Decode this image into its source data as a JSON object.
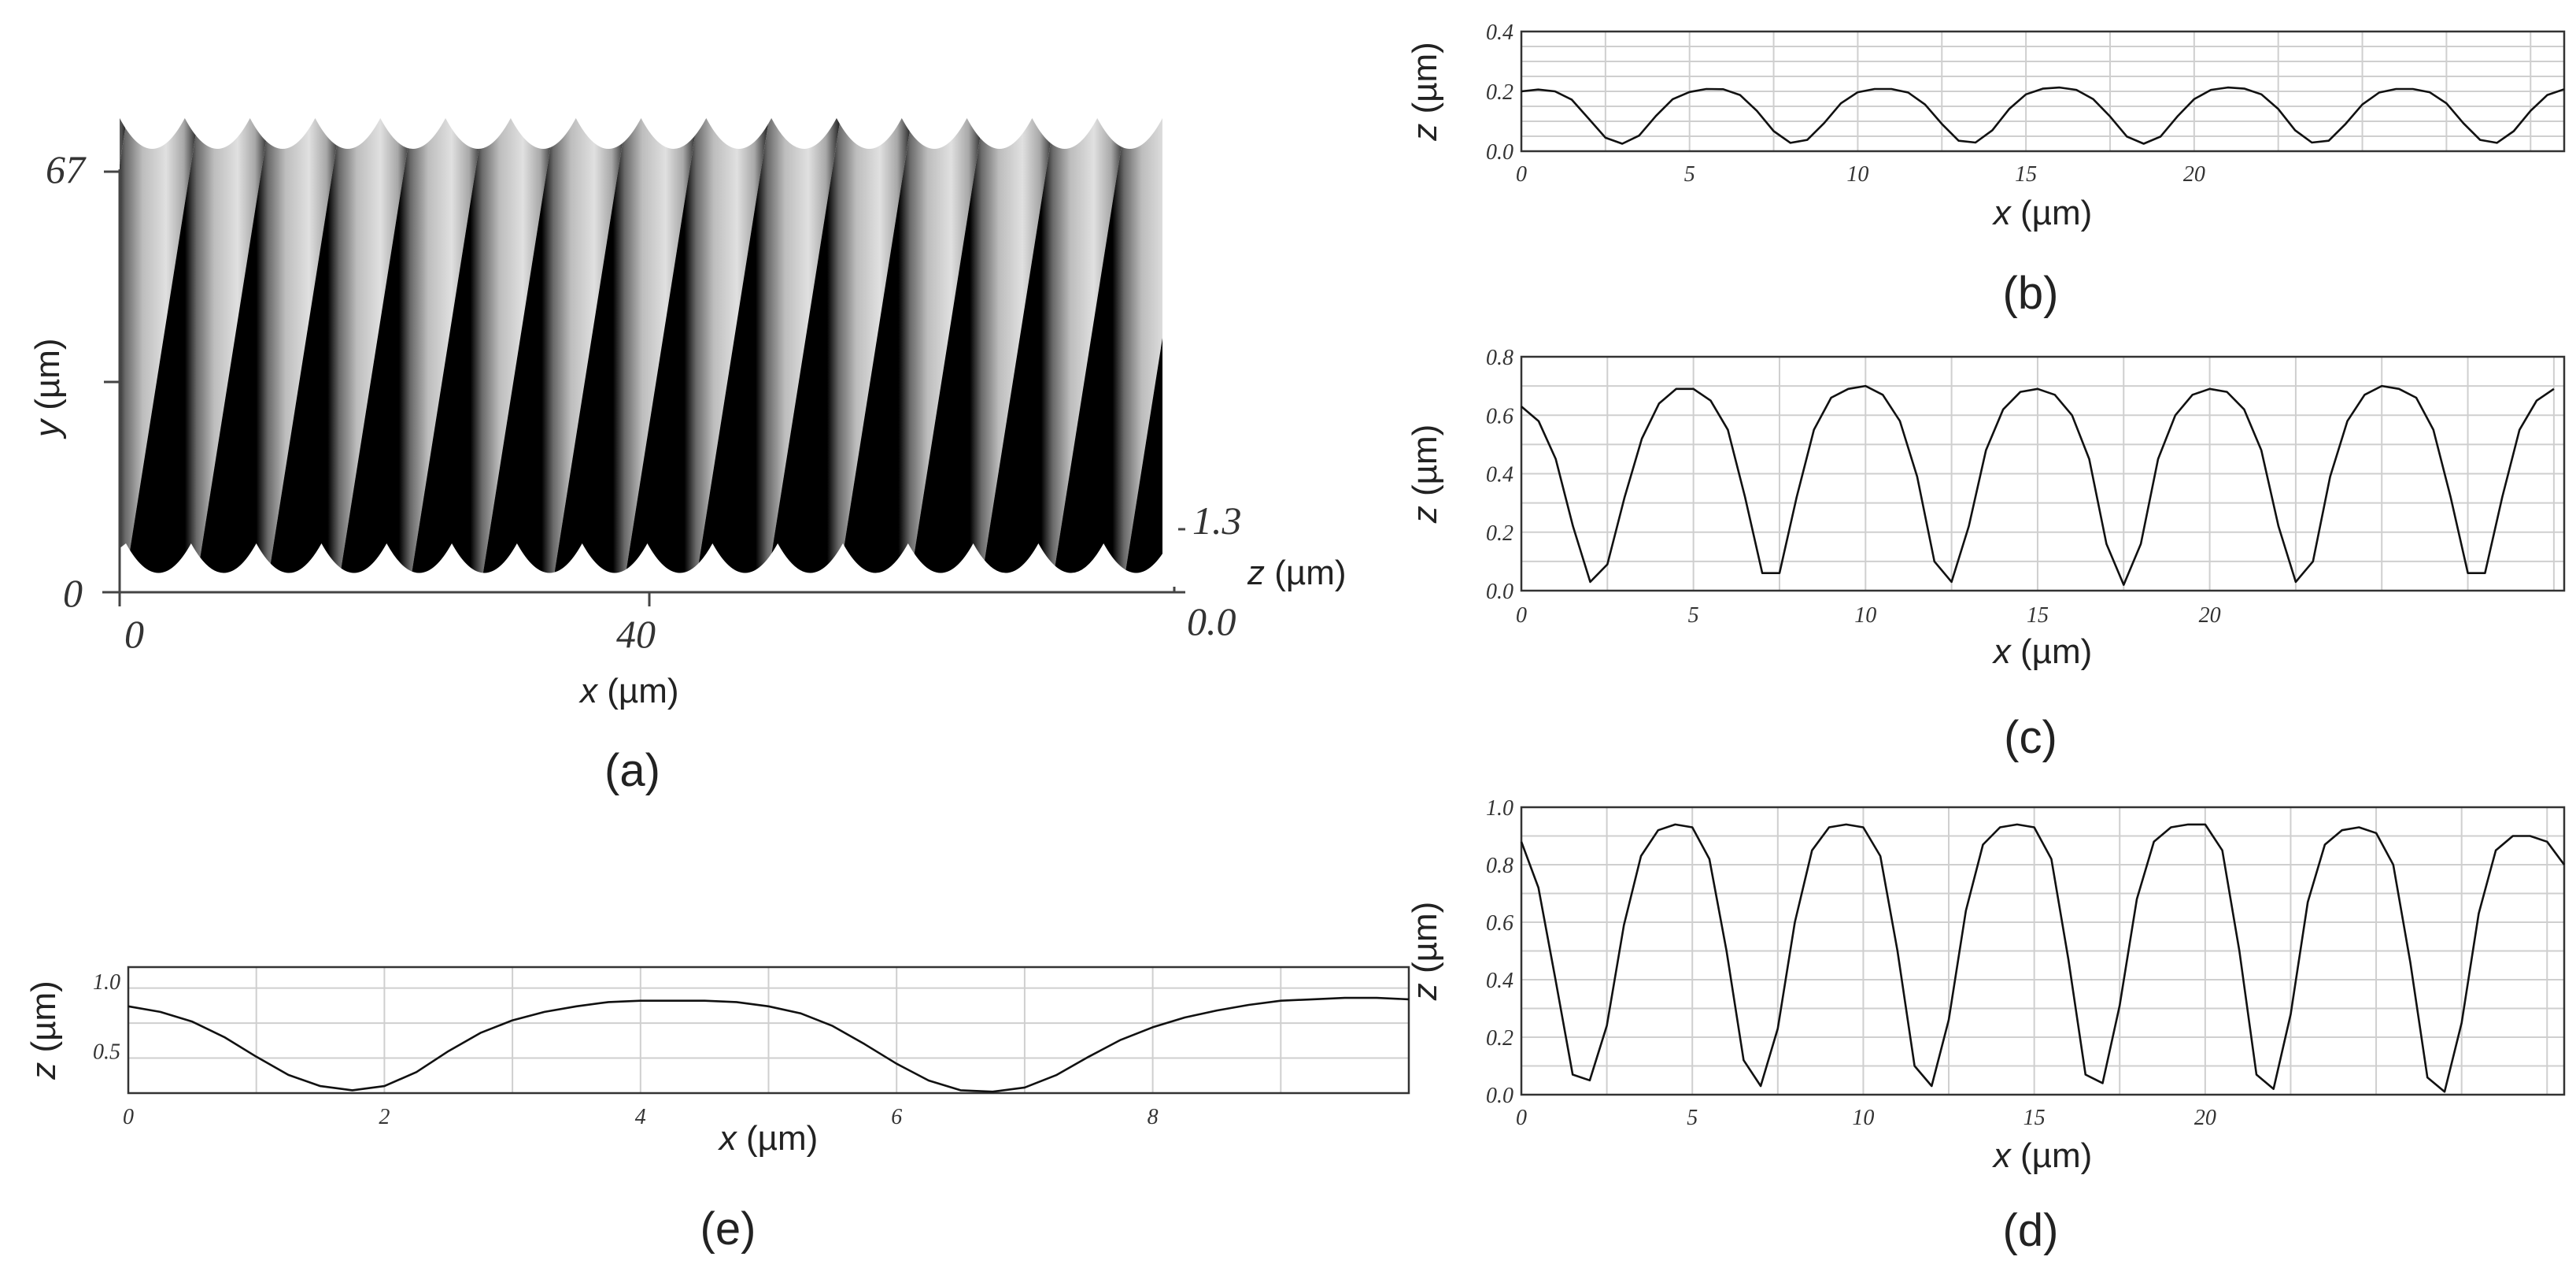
{
  "chart_data": [
    {
      "type": "heatmap",
      "panel": "a",
      "caption": "(a)",
      "xlabel_var": "x",
      "xlabel_unit": " (µm)",
      "ylabel_var": "y",
      "ylabel_unit": " (µm)",
      "zlabel_var": "z",
      "zlabel_unit": " (µm)",
      "x_ticks": [
        "0",
        "40"
      ],
      "y_ticks": [
        "0",
        "67"
      ],
      "z_ticks": [
        "0.0",
        "1.3"
      ],
      "xlim": [
        0,
        76
      ],
      "ylim": [
        0,
        67
      ],
      "zlim": [
        0.0,
        1.3
      ],
      "stripe_period_um": 5.2,
      "stripe_count": 15,
      "colormap": [
        "#000000",
        "#d8d8d8"
      ]
    },
    {
      "type": "line",
      "panel": "b",
      "caption": "(b)",
      "xlabel_var": "x",
      "xlabel_unit": " (µm)",
      "ylabel_var": "z",
      "ylabel_unit": " (µm)",
      "xlim": [
        0,
        31
      ],
      "ylim": [
        0.0,
        0.4
      ],
      "x_ticks": [
        0,
        5,
        10,
        15,
        20
      ],
      "y_ticks": [
        "0.0",
        "0.2",
        "0.4"
      ],
      "y_tick_values": [
        0.0,
        0.2,
        0.4
      ],
      "grid": true,
      "series": [
        {
          "x": [
            0.0,
            0.5,
            1.0,
            1.5,
            2.0,
            2.5,
            3.0,
            3.5,
            4.0,
            4.5,
            5.0,
            5.5,
            6.0,
            6.5,
            7.0,
            7.5,
            8.0,
            8.5,
            9.0,
            9.5,
            10.0,
            10.5,
            11.0,
            11.5,
            12.0,
            12.5,
            13.0,
            13.5,
            14.0,
            14.5,
            15.0,
            15.5,
            16.0,
            16.5,
            17.0,
            17.5,
            18.0,
            18.5,
            19.0,
            19.5,
            20.0,
            20.5,
            21.0,
            21.5,
            22.0,
            22.5,
            23.0,
            23.5,
            24.0,
            24.5,
            25.0,
            25.5,
            26.0,
            26.5,
            27.0,
            27.5,
            28.0,
            28.5,
            29.0,
            29.5,
            30.0,
            30.5,
            31.0
          ],
          "y": [
            0.2,
            0.206,
            0.2,
            0.172,
            0.109,
            0.045,
            0.025,
            0.052,
            0.118,
            0.174,
            0.198,
            0.208,
            0.207,
            0.188,
            0.135,
            0.067,
            0.028,
            0.038,
            0.094,
            0.16,
            0.197,
            0.208,
            0.208,
            0.196,
            0.156,
            0.091,
            0.035,
            0.029,
            0.07,
            0.141,
            0.19,
            0.209,
            0.213,
            0.205,
            0.174,
            0.116,
            0.049,
            0.025,
            0.049,
            0.116,
            0.174,
            0.205,
            0.213,
            0.209,
            0.19,
            0.141,
            0.07,
            0.029,
            0.035,
            0.091,
            0.156,
            0.196,
            0.208,
            0.208,
            0.197,
            0.16,
            0.094,
            0.038,
            0.028,
            0.067,
            0.135,
            0.188,
            0.207
          ]
        }
      ]
    },
    {
      "type": "line",
      "panel": "c",
      "caption": "(c)",
      "xlabel_var": "x",
      "xlabel_unit": " (µm)",
      "ylabel_var": "z",
      "ylabel_unit": " (µm)",
      "xlim": [
        0,
        30.3
      ],
      "ylim": [
        0.0,
        0.8
      ],
      "x_ticks": [
        0,
        5,
        10,
        15,
        20
      ],
      "y_ticks": [
        "0.0",
        "0.2",
        "0.4",
        "0.6",
        "0.8"
      ],
      "y_tick_values": [
        0.0,
        0.2,
        0.4,
        0.6,
        0.8
      ],
      "grid": true,
      "series": [
        {
          "x": [
            0.0,
            0.5,
            1.0,
            1.5,
            2.0,
            2.5,
            3.0,
            3.5,
            4.0,
            4.5,
            5.0,
            5.5,
            6.0,
            6.5,
            7.0,
            7.5,
            8.0,
            8.5,
            9.0,
            9.5,
            10.0,
            10.5,
            11.0,
            11.5,
            12.0,
            12.5,
            13.0,
            13.5,
            14.0,
            14.5,
            15.0,
            15.5,
            16.0,
            16.5,
            17.0,
            17.5,
            18.0,
            18.5,
            19.0,
            19.5,
            20.0,
            20.5,
            21.0,
            21.5,
            22.0,
            22.5,
            23.0,
            23.5,
            24.0,
            24.5,
            25.0,
            25.5,
            26.0,
            26.5,
            27.0,
            27.5,
            28.0,
            28.5,
            29.0,
            29.5,
            30.0
          ],
          "y": [
            0.63,
            0.58,
            0.45,
            0.22,
            0.03,
            0.09,
            0.32,
            0.52,
            0.64,
            0.69,
            0.69,
            0.65,
            0.55,
            0.32,
            0.06,
            0.06,
            0.32,
            0.55,
            0.66,
            0.69,
            0.7,
            0.67,
            0.58,
            0.39,
            0.1,
            0.03,
            0.22,
            0.48,
            0.62,
            0.68,
            0.69,
            0.67,
            0.6,
            0.45,
            0.16,
            0.02,
            0.16,
            0.45,
            0.6,
            0.67,
            0.69,
            0.68,
            0.62,
            0.48,
            0.22,
            0.03,
            0.1,
            0.39,
            0.58,
            0.67,
            0.7,
            0.69,
            0.66,
            0.55,
            0.32,
            0.06,
            0.06,
            0.32,
            0.55,
            0.65,
            0.69
          ]
        }
      ]
    },
    {
      "type": "line",
      "panel": "d",
      "caption": "(d)",
      "xlabel_var": "x",
      "xlabel_unit": " (µm)",
      "ylabel_var": "z",
      "ylabel_unit": " (µm)",
      "xlim": [
        0,
        30.5
      ],
      "ylim": [
        0.0,
        1.0
      ],
      "x_ticks": [
        0,
        5,
        10,
        15,
        20
      ],
      "y_ticks": [
        "0.0",
        "0.2",
        "0.4",
        "0.6",
        "0.8",
        "1.0"
      ],
      "y_tick_values": [
        0.0,
        0.2,
        0.4,
        0.6,
        0.8,
        1.0
      ],
      "grid": true,
      "series": [
        {
          "x": [
            0.0,
            0.5,
            1.0,
            1.5,
            2.0,
            2.5,
            3.0,
            3.5,
            4.0,
            4.5,
            5.0,
            5.5,
            6.0,
            6.5,
            7.0,
            7.5,
            8.0,
            8.5,
            9.0,
            9.5,
            10.0,
            10.5,
            11.0,
            11.5,
            12.0,
            12.5,
            13.0,
            13.5,
            14.0,
            14.5,
            15.0,
            15.5,
            16.0,
            16.5,
            17.0,
            17.5,
            18.0,
            18.5,
            19.0,
            19.5,
            20.0,
            20.5,
            21.0,
            21.5,
            22.0,
            22.5,
            23.0,
            23.5,
            24.0,
            24.5,
            25.0,
            25.5,
            26.0,
            26.5,
            27.0,
            27.5,
            28.0,
            28.5,
            29.0,
            29.5,
            30.0,
            30.5
          ],
          "y": [
            0.88,
            0.72,
            0.4,
            0.07,
            0.05,
            0.24,
            0.59,
            0.83,
            0.92,
            0.94,
            0.93,
            0.82,
            0.5,
            0.12,
            0.03,
            0.23,
            0.6,
            0.85,
            0.93,
            0.94,
            0.93,
            0.83,
            0.5,
            0.1,
            0.03,
            0.26,
            0.64,
            0.87,
            0.93,
            0.94,
            0.93,
            0.82,
            0.47,
            0.07,
            0.04,
            0.31,
            0.68,
            0.88,
            0.93,
            0.94,
            0.94,
            0.85,
            0.5,
            0.07,
            0.02,
            0.28,
            0.67,
            0.87,
            0.92,
            0.93,
            0.91,
            0.8,
            0.46,
            0.06,
            0.01,
            0.25,
            0.63,
            0.85,
            0.9,
            0.9,
            0.88,
            0.8
          ]
        }
      ]
    },
    {
      "type": "line",
      "panel": "e",
      "caption": "(e)",
      "xlabel_var": "x",
      "xlabel_unit": " (µm)",
      "ylabel_var": "z",
      "ylabel_unit": " (µm)",
      "xlim": [
        0,
        10
      ],
      "ylim": [
        0.2,
        1.1
      ],
      "x_ticks": [
        0,
        2,
        4,
        6,
        8
      ],
      "y_ticks": [
        "0.5",
        "1.0"
      ],
      "y_tick_values": [
        0.5,
        1.0
      ],
      "grid": true,
      "series": [
        {
          "x": [
            0.0,
            0.25,
            0.5,
            0.75,
            1.0,
            1.25,
            1.5,
            1.75,
            2.0,
            2.25,
            2.5,
            2.75,
            3.0,
            3.25,
            3.5,
            3.75,
            4.0,
            4.25,
            4.5,
            4.75,
            5.0,
            5.25,
            5.5,
            5.75,
            6.0,
            6.25,
            6.5,
            6.75,
            7.0,
            7.25,
            7.5,
            7.75,
            8.0,
            8.25,
            8.5,
            8.75,
            9.0,
            9.25,
            9.5,
            9.75,
            10.0
          ],
          "y": [
            0.82,
            0.78,
            0.71,
            0.6,
            0.46,
            0.33,
            0.25,
            0.22,
            0.25,
            0.35,
            0.5,
            0.63,
            0.72,
            0.78,
            0.82,
            0.85,
            0.86,
            0.86,
            0.86,
            0.85,
            0.82,
            0.77,
            0.68,
            0.55,
            0.41,
            0.29,
            0.22,
            0.21,
            0.24,
            0.33,
            0.46,
            0.58,
            0.67,
            0.74,
            0.79,
            0.83,
            0.86,
            0.87,
            0.88,
            0.88,
            0.87
          ]
        }
      ]
    }
  ]
}
